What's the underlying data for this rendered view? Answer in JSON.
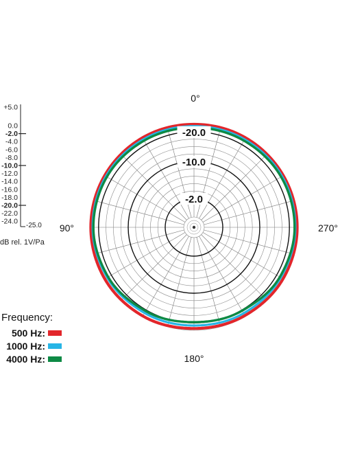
{
  "chart_data": {
    "type": "polar",
    "angle_labels": [
      {
        "id": "top",
        "text": "0°",
        "angle": 0
      },
      {
        "id": "left",
        "text": "90°",
        "angle": 90
      },
      {
        "id": "bottom",
        "text": "180°",
        "angle": 180
      },
      {
        "id": "right",
        "text": "270°",
        "angle": 270
      }
    ],
    "rings": [
      -25,
      -20,
      -18,
      -16,
      -14,
      -12,
      -10,
      -8,
      -6,
      -4,
      -2,
      0
    ],
    "major_rings": [
      -20,
      -10,
      -2
    ],
    "ring_labels": [
      "-2.0",
      "-10.0",
      "-20.0"
    ],
    "r_range": [
      -25,
      0
    ],
    "angular_divisions_deg": 15,
    "scale": {
      "ticks": [
        "+5.0",
        "0.0",
        "-2.0",
        "-4.0",
        "-6.0",
        "-8.0",
        "-10.0",
        "-12.0",
        "-14.0",
        "-16.0",
        "-18.0",
        "-20.0",
        "-22.0",
        "-24.0",
        "-25.0"
      ],
      "bold_ticks": [
        "-2.0",
        "-10.0",
        "-20.0"
      ],
      "unit": "dB rel. 1V/Pa"
    },
    "series": [
      {
        "name": "500 Hz",
        "color": "#e2262b",
        "stroke": 4.2,
        "shape": [
          [
            0,
            0.0
          ],
          [
            30,
            0.1
          ],
          [
            60,
            0.1
          ],
          [
            90,
            0.1
          ],
          [
            120,
            0.05
          ],
          [
            150,
            -0.15
          ],
          [
            180,
            -0.5
          ],
          [
            210,
            -0.3
          ],
          [
            240,
            0.0
          ],
          [
            270,
            0.1
          ],
          [
            300,
            0.1
          ],
          [
            330,
            0.1
          ]
        ]
      },
      {
        "name": "1000 Hz",
        "color": "#27b5e6",
        "stroke": 3.2,
        "shape": [
          [
            0,
            -0.5
          ],
          [
            30,
            -0.4
          ],
          [
            60,
            -0.3
          ],
          [
            90,
            -0.4
          ],
          [
            120,
            -0.7
          ],
          [
            150,
            -1.1
          ],
          [
            180,
            -1.3
          ],
          [
            210,
            -1.0
          ],
          [
            240,
            -0.7
          ],
          [
            270,
            -0.4
          ],
          [
            300,
            -0.3
          ],
          [
            330,
            -0.4
          ]
        ]
      },
      {
        "name": "4000 Hz",
        "color": "#0e8a45",
        "stroke": 3.4,
        "shape": [
          [
            0,
            -0.9
          ],
          [
            30,
            -0.8
          ],
          [
            60,
            -0.6
          ],
          [
            90,
            -0.6
          ],
          [
            120,
            -1.0
          ],
          [
            150,
            -1.7
          ],
          [
            180,
            -2.2
          ],
          [
            210,
            -1.8
          ],
          [
            240,
            -1.0
          ],
          [
            270,
            -0.6
          ],
          [
            300,
            -0.6
          ],
          [
            330,
            -0.8
          ]
        ]
      }
    ]
  },
  "legend": {
    "title": "Frequency:",
    "items": [
      {
        "label": "500 Hz:",
        "color": "#e2262b"
      },
      {
        "label": "1000 Hz:",
        "color": "#27b5e6"
      },
      {
        "label": "4000 Hz:",
        "color": "#0e8a45"
      }
    ]
  }
}
